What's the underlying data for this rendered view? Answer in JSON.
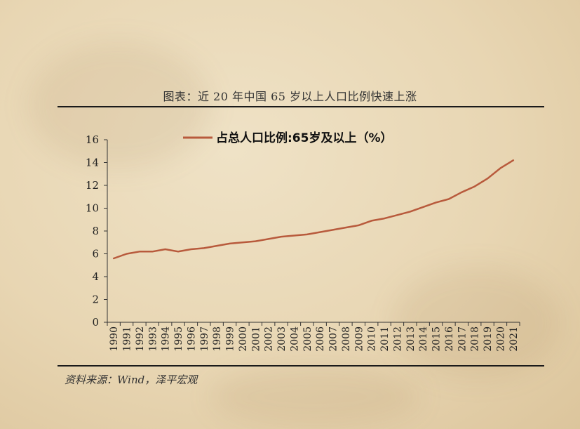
{
  "title": "图表：近 20 年中国 65 岁以上人口比例快速上涨",
  "source": "资料来源：Wind，泽平宏观",
  "colors": {
    "line": "#b85a3c",
    "axis": "#333333",
    "rule": "#1a1a1a"
  },
  "chart_data": {
    "type": "line",
    "title": "",
    "xlabel": "",
    "ylabel": "",
    "ylim": [
      0,
      16
    ],
    "yticks": [
      0,
      2,
      4,
      6,
      8,
      10,
      12,
      14,
      16
    ],
    "grid": false,
    "legend_position": "top-center",
    "categories": [
      "1990",
      "1991",
      "1992",
      "1993",
      "1994",
      "1995",
      "1996",
      "1997",
      "1998",
      "1999",
      "2000",
      "2001",
      "2002",
      "2003",
      "2004",
      "2005",
      "2006",
      "2007",
      "2008",
      "2009",
      "2010",
      "2011",
      "2012",
      "2013",
      "2014",
      "2015",
      "2016",
      "2017",
      "2018",
      "2019",
      "2020",
      "2021"
    ],
    "series": [
      {
        "name": "占总人口比例:65岁及以上（%）",
        "values": [
          5.6,
          6.0,
          6.2,
          6.2,
          6.4,
          6.2,
          6.4,
          6.5,
          6.7,
          6.9,
          7.0,
          7.1,
          7.3,
          7.5,
          7.6,
          7.7,
          7.9,
          8.1,
          8.3,
          8.5,
          8.9,
          9.1,
          9.4,
          9.7,
          10.1,
          10.5,
          10.8,
          11.4,
          11.9,
          12.6,
          13.5,
          14.2
        ]
      }
    ]
  }
}
